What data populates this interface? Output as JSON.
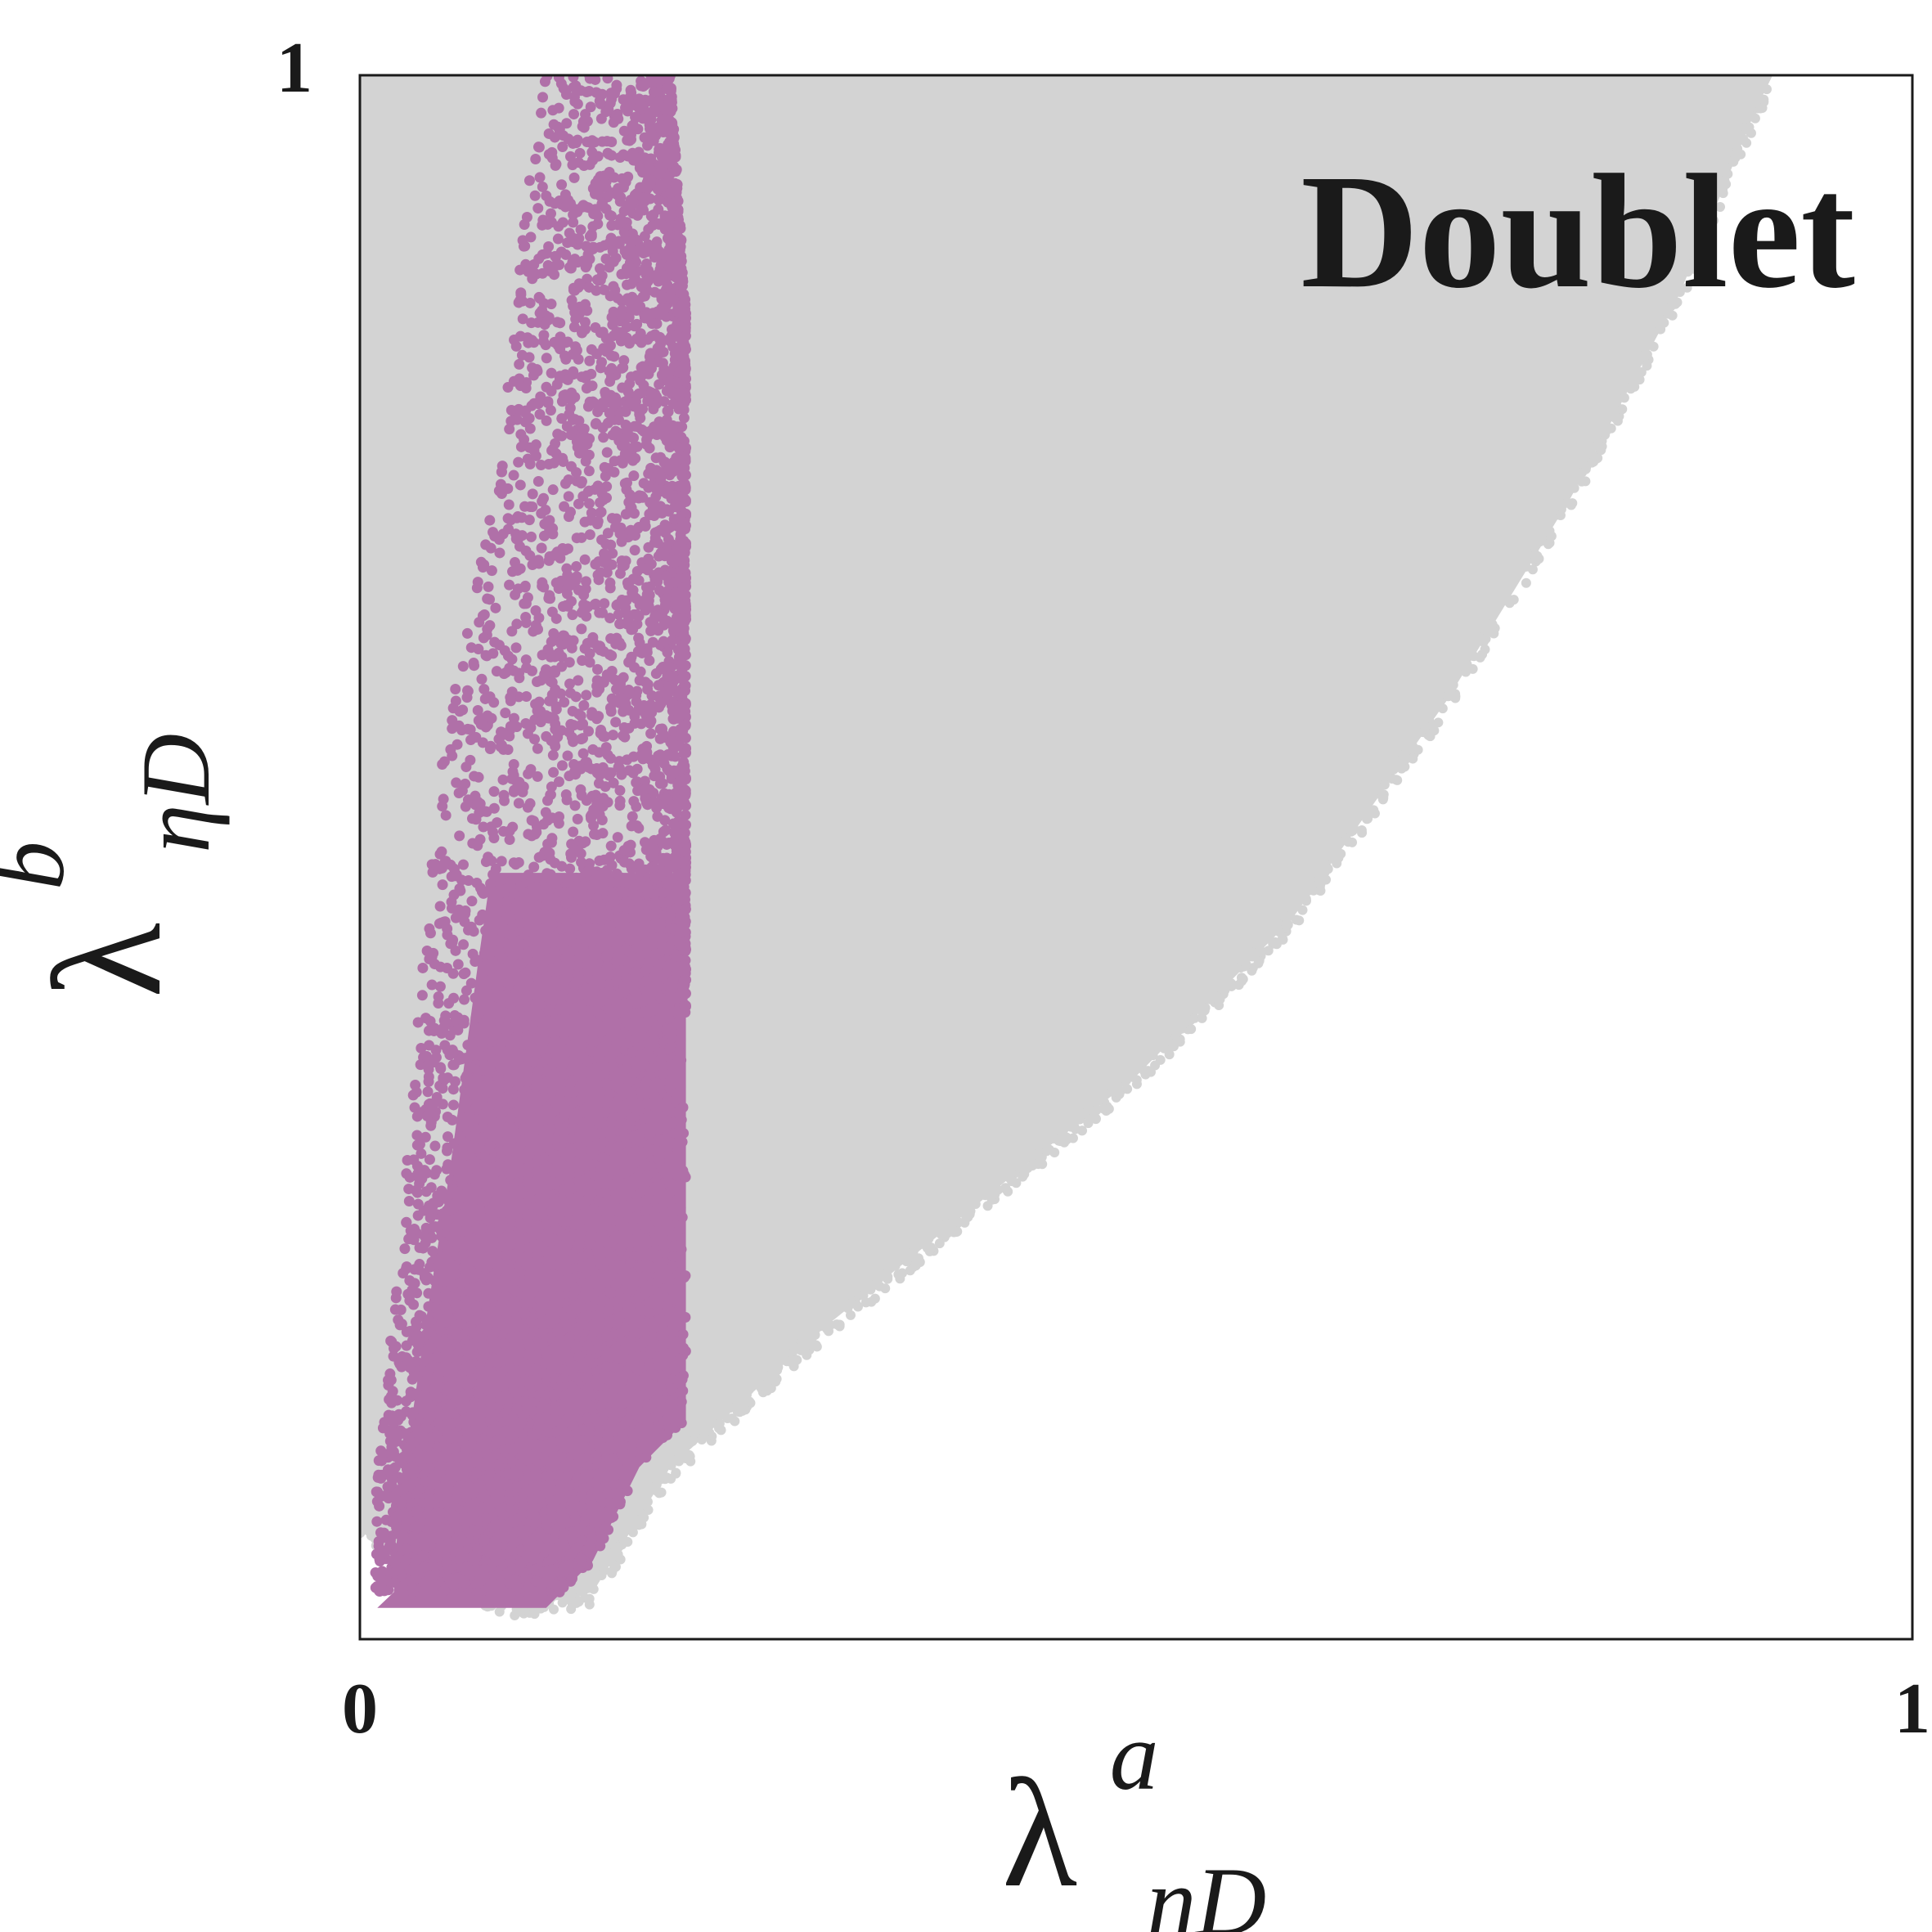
{
  "chart_data": {
    "type": "scatter",
    "title": "",
    "annotation": "Doublet",
    "xlabel": {
      "base": "λ",
      "sup": "a",
      "sub": "ηD"
    },
    "ylabel": {
      "base": "λ",
      "sup": "b",
      "sub": "ηD"
    },
    "xlim": [
      0,
      1
    ],
    "ylim": [
      0,
      1
    ],
    "x_ticks": [
      "0",
      "1"
    ],
    "y_ticks": [
      "1"
    ],
    "grid": false,
    "legend": "none",
    "series": [
      {
        "color": "#d3d3d3",
        "region": {
          "description_points": "approximate envelope of the dense point cloud (data units)",
          "lower_boundary": [
            [
              0.0,
              0.07
            ],
            [
              0.05,
              0.04
            ],
            [
              0.1,
              0.02
            ],
            [
              0.15,
              0.03
            ],
            [
              0.2,
              0.11
            ],
            [
              0.3,
              0.2
            ],
            [
              0.4,
              0.28
            ],
            [
              0.5,
              0.36
            ],
            [
              0.6,
              0.46
            ],
            [
              0.7,
              0.6
            ],
            [
              0.78,
              0.73
            ],
            [
              0.85,
              0.86
            ],
            [
              0.9,
              0.98
            ],
            [
              0.91,
              1.0
            ]
          ],
          "upper_boundary": [
            [
              0.0,
              1.0
            ],
            [
              0.9,
              1.0
            ]
          ]
        }
      },
      {
        "color": "#b070a8",
        "region": {
          "description_points": "approximate envelope of the dense point cloud (data units)",
          "left_boundary": [
            [
              0.01,
              0.03
            ],
            [
              0.01,
              0.1
            ],
            [
              0.015,
              0.14
            ],
            [
              0.02,
              0.2
            ],
            [
              0.03,
              0.3
            ],
            [
              0.04,
              0.43
            ],
            [
              0.05,
              0.55
            ],
            [
              0.07,
              0.65
            ],
            [
              0.09,
              0.75
            ],
            [
              0.1,
              0.85
            ],
            [
              0.11,
              0.95
            ],
            [
              0.12,
              1.0
            ]
          ],
          "right_boundary": [
            [
              0.2,
              1.0
            ],
            [
              0.21,
              0.85
            ],
            [
              0.21,
              0.65
            ],
            [
              0.21,
              0.5
            ],
            [
              0.21,
              0.33
            ],
            [
              0.21,
              0.14
            ],
            [
              0.18,
              0.11
            ],
            [
              0.15,
              0.05
            ],
            [
              0.12,
              0.02
            ],
            [
              0.08,
              0.01
            ]
          ]
        }
      }
    ]
  }
}
